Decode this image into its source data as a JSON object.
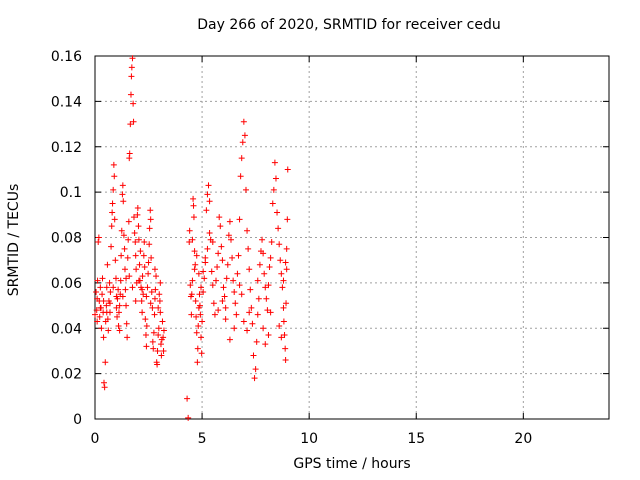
{
  "chart_data": {
    "type": "scatter",
    "title": "Day 266 of 2020, SRMTID for receiver cedu",
    "xlabel": "GPS time / hours",
    "ylabel": "SRMTID / TECUs",
    "xlim": [
      0,
      24
    ],
    "ylim": [
      0,
      0.16
    ],
    "xticks": [
      "0",
      "5",
      "10",
      "15",
      "20"
    ],
    "yticks": [
      "0",
      "0.02",
      "0.04",
      "0.06",
      "0.08",
      "0.1",
      "0.12",
      "0.14",
      "0.16"
    ],
    "grid": true,
    "legend": "none",
    "marker": "+",
    "color": "#ff0000",
    "series": [
      {
        "points": [
          [
            0.0,
            0.046
          ],
          [
            0.05,
            0.056
          ],
          [
            0.08,
            0.048
          ],
          [
            0.1,
            0.043
          ],
          [
            0.12,
            0.061
          ],
          [
            0.15,
            0.078
          ],
          [
            0.18,
            0.08
          ],
          [
            0.2,
            0.052
          ],
          [
            0.22,
            0.045
          ],
          [
            0.25,
            0.058
          ],
          [
            0.28,
            0.049
          ],
          [
            0.3,
            0.04
          ],
          [
            0.33,
            0.055
          ],
          [
            0.35,
            0.062
          ],
          [
            0.38,
            0.047
          ],
          [
            0.4,
            0.036
          ],
          [
            0.42,
            0.016
          ],
          [
            0.45,
            0.014
          ],
          [
            0.48,
            0.025
          ],
          [
            0.5,
            0.043
          ],
          [
            0.53,
            0.05
          ],
          [
            0.55,
            0.058
          ],
          [
            0.58,
            0.068
          ],
          [
            0.6,
            0.044
          ],
          [
            0.62,
            0.039
          ],
          [
            0.65,
            0.052
          ],
          [
            0.68,
            0.06
          ],
          [
            0.7,
            0.047
          ],
          [
            0.72,
            0.056
          ],
          [
            0.75,
            0.076
          ],
          [
            0.78,
            0.085
          ],
          [
            0.8,
            0.091
          ],
          [
            0.82,
            0.095
          ],
          [
            0.85,
            0.101
          ],
          [
            0.88,
            0.112
          ],
          [
            0.9,
            0.107
          ],
          [
            0.92,
            0.088
          ],
          [
            0.95,
            0.07
          ],
          [
            0.98,
            0.062
          ],
          [
            1.0,
            0.049
          ],
          [
            1.03,
            0.045
          ],
          [
            1.05,
            0.053
          ],
          [
            1.08,
            0.057
          ],
          [
            1.1,
            0.041
          ],
          [
            1.12,
            0.047
          ],
          [
            1.15,
            0.039
          ],
          [
            1.18,
            0.055
          ],
          [
            1.2,
            0.061
          ],
          [
            1.22,
            0.072
          ],
          [
            1.25,
            0.083
          ],
          [
            1.28,
            0.099
          ],
          [
            1.3,
            0.103
          ],
          [
            1.32,
            0.096
          ],
          [
            1.35,
            0.081
          ],
          [
            1.38,
            0.075
          ],
          [
            1.4,
            0.066
          ],
          [
            1.42,
            0.057
          ],
          [
            1.45,
            0.05
          ],
          [
            1.48,
            0.042
          ],
          [
            1.5,
            0.036
          ],
          [
            1.53,
            0.071
          ],
          [
            1.55,
            0.079
          ],
          [
            1.58,
            0.087
          ],
          [
            1.6,
            0.115
          ],
          [
            1.62,
            0.117
          ],
          [
            1.65,
            0.13
          ],
          [
            1.68,
            0.143
          ],
          [
            1.7,
            0.151
          ],
          [
            1.72,
            0.155
          ],
          [
            1.75,
            0.159
          ],
          [
            1.78,
            0.139
          ],
          [
            1.8,
            0.131
          ],
          [
            1.82,
            0.089
          ],
          [
            1.85,
            0.082
          ],
          [
            1.88,
            0.078
          ],
          [
            1.9,
            0.072
          ],
          [
            1.92,
            0.066
          ],
          [
            1.95,
            0.06
          ],
          [
            1.98,
            0.09
          ],
          [
            2.0,
            0.093
          ],
          [
            2.03,
            0.085
          ],
          [
            2.05,
            0.079
          ],
          [
            2.08,
            0.068
          ],
          [
            2.1,
            0.061
          ],
          [
            2.12,
            0.074
          ],
          [
            2.15,
            0.058
          ],
          [
            2.18,
            0.052
          ],
          [
            2.2,
            0.047
          ],
          [
            2.22,
            0.063
          ],
          [
            2.25,
            0.055
          ],
          [
            2.28,
            0.072
          ],
          [
            2.3,
            0.078
          ],
          [
            2.32,
            0.067
          ],
          [
            2.35,
            0.044
          ],
          [
            2.38,
            0.037
          ],
          [
            2.4,
            0.032
          ],
          [
            2.42,
            0.041
          ],
          [
            2.45,
            0.058
          ],
          [
            2.48,
            0.064
          ],
          [
            2.5,
            0.069
          ],
          [
            2.53,
            0.077
          ],
          [
            2.55,
            0.084
          ],
          [
            2.58,
            0.092
          ],
          [
            2.6,
            0.088
          ],
          [
            2.62,
            0.071
          ],
          [
            2.65,
            0.056
          ],
          [
            2.68,
            0.049
          ],
          [
            2.7,
            0.034
          ],
          [
            2.72,
            0.031
          ],
          [
            2.75,
            0.038
          ],
          [
            2.78,
            0.046
          ],
          [
            2.8,
            0.053
          ],
          [
            2.82,
            0.057
          ],
          [
            2.85,
            0.063
          ],
          [
            2.88,
            0.025
          ],
          [
            2.9,
            0.024
          ],
          [
            2.92,
            0.03
          ],
          [
            2.95,
            0.037
          ],
          [
            2.98,
            0.04
          ],
          [
            3.0,
            0.055
          ],
          [
            3.03,
            0.052
          ],
          [
            3.05,
            0.047
          ],
          [
            3.08,
            0.033
          ],
          [
            3.1,
            0.028
          ],
          [
            3.12,
            0.035
          ],
          [
            3.15,
            0.043
          ],
          [
            3.18,
            0.036
          ],
          [
            3.2,
            0.03
          ],
          [
            3.22,
            0.039
          ],
          [
            4.3,
            0.009
          ],
          [
            4.35,
            0.0005
          ],
          [
            4.4,
            0.078
          ],
          [
            4.42,
            0.083
          ],
          [
            4.45,
            0.059
          ],
          [
            4.48,
            0.054
          ],
          [
            4.5,
            0.046
          ],
          [
            4.52,
            0.055
          ],
          [
            4.55,
            0.079
          ],
          [
            4.58,
            0.097
          ],
          [
            4.6,
            0.094
          ],
          [
            4.62,
            0.089
          ],
          [
            4.65,
            0.074
          ],
          [
            4.68,
            0.068
          ],
          [
            4.7,
            0.052
          ],
          [
            4.72,
            0.045
          ],
          [
            4.75,
            0.038
          ],
          [
            4.78,
            0.025
          ],
          [
            4.8,
            0.031
          ],
          [
            4.82,
            0.041
          ],
          [
            4.85,
            0.049
          ],
          [
            4.88,
            0.055
          ],
          [
            4.9,
            0.05
          ],
          [
            4.92,
            0.046
          ],
          [
            4.95,
            0.036
          ],
          [
            4.98,
            0.029
          ],
          [
            5.0,
            0.043
          ],
          [
            5.05,
            0.056
          ],
          [
            5.1,
            0.062
          ],
          [
            5.15,
            0.071
          ],
          [
            5.2,
            0.092
          ],
          [
            5.25,
            0.099
          ],
          [
            5.3,
            0.103
          ],
          [
            5.35,
            0.096
          ],
          [
            5.4,
            0.079
          ],
          [
            5.45,
            0.065
          ],
          [
            5.5,
            0.059
          ],
          [
            5.55,
            0.051
          ],
          [
            5.6,
            0.046
          ],
          [
            5.65,
            0.061
          ],
          [
            5.7,
            0.067
          ],
          [
            5.75,
            0.073
          ],
          [
            5.8,
            0.089
          ],
          [
            5.85,
            0.085
          ],
          [
            5.9,
            0.076
          ],
          [
            5.95,
            0.07
          ],
          [
            6.0,
            0.058
          ],
          [
            6.05,
            0.054
          ],
          [
            6.1,
            0.049
          ],
          [
            6.15,
            0.062
          ],
          [
            6.2,
            0.068
          ],
          [
            6.25,
            0.081
          ],
          [
            6.3,
            0.087
          ],
          [
            6.35,
            0.079
          ],
          [
            6.4,
            0.071
          ],
          [
            6.45,
            0.061
          ],
          [
            6.5,
            0.056
          ],
          [
            6.55,
            0.051
          ],
          [
            6.6,
            0.046
          ],
          [
            6.65,
            0.064
          ],
          [
            6.7,
            0.072
          ],
          [
            6.75,
            0.088
          ],
          [
            6.8,
            0.107
          ],
          [
            6.85,
            0.115
          ],
          [
            6.9,
            0.122
          ],
          [
            6.95,
            0.131
          ],
          [
            7.0,
            0.125
          ],
          [
            7.05,
            0.101
          ],
          [
            7.1,
            0.083
          ],
          [
            7.15,
            0.075
          ],
          [
            7.2,
            0.066
          ],
          [
            7.25,
            0.057
          ],
          [
            7.3,
            0.049
          ],
          [
            7.35,
            0.042
          ],
          [
            7.4,
            0.028
          ],
          [
            7.45,
            0.018
          ],
          [
            7.5,
            0.022
          ],
          [
            7.55,
            0.034
          ],
          [
            7.6,
            0.046
          ],
          [
            7.65,
            0.053
          ],
          [
            7.7,
            0.068
          ],
          [
            7.75,
            0.074
          ],
          [
            7.8,
            0.079
          ],
          [
            7.85,
            0.073
          ],
          [
            7.9,
            0.064
          ],
          [
            7.95,
            0.058
          ],
          [
            8.0,
            0.053
          ],
          [
            8.05,
            0.048
          ],
          [
            8.1,
            0.059
          ],
          [
            8.15,
            0.067
          ],
          [
            8.2,
            0.071
          ],
          [
            8.25,
            0.078
          ],
          [
            8.3,
            0.095
          ],
          [
            8.35,
            0.101
          ],
          [
            8.4,
            0.113
          ],
          [
            8.45,
            0.106
          ],
          [
            8.5,
            0.091
          ],
          [
            8.55,
            0.084
          ],
          [
            8.6,
            0.077
          ],
          [
            8.65,
            0.07
          ],
          [
            8.7,
            0.064
          ],
          [
            8.75,
            0.058
          ],
          [
            8.8,
            0.049
          ],
          [
            8.82,
            0.043
          ],
          [
            8.85,
            0.037
          ],
          [
            8.88,
            0.031
          ],
          [
            8.9,
            0.026
          ],
          [
            8.92,
            0.051
          ],
          [
            8.95,
            0.066
          ],
          [
            8.98,
            0.088
          ],
          [
            9.0,
            0.11
          ],
          [
            8.6,
            0.041
          ],
          [
            8.7,
            0.036
          ],
          [
            8.8,
            0.061
          ],
          [
            8.9,
            0.069
          ],
          [
            8.95,
            0.075
          ],
          [
            8.2,
            0.047
          ],
          [
            8.1,
            0.037
          ],
          [
            7.95,
            0.033
          ],
          [
            7.85,
            0.04
          ],
          [
            7.6,
            0.061
          ],
          [
            7.2,
            0.047
          ],
          [
            7.1,
            0.039
          ],
          [
            6.95,
            0.043
          ],
          [
            6.85,
            0.055
          ],
          [
            6.75,
            0.059
          ],
          [
            6.5,
            0.04
          ],
          [
            6.3,
            0.035
          ],
          [
            6.1,
            0.044
          ],
          [
            5.95,
            0.052
          ],
          [
            5.75,
            0.048
          ],
          [
            5.5,
            0.078
          ],
          [
            5.35,
            0.082
          ],
          [
            5.25,
            0.075
          ],
          [
            5.15,
            0.069
          ],
          [
            5.05,
            0.065
          ],
          [
            4.95,
            0.058
          ],
          [
            4.85,
            0.064
          ],
          [
            4.75,
            0.072
          ],
          [
            4.65,
            0.066
          ],
          [
            4.55,
            0.061
          ],
          [
            3.05,
            0.06
          ],
          [
            2.95,
            0.049
          ],
          [
            2.8,
            0.066
          ],
          [
            2.6,
            0.051
          ],
          [
            2.4,
            0.054
          ],
          [
            2.2,
            0.057
          ],
          [
            2.05,
            0.061
          ],
          [
            1.9,
            0.052
          ],
          [
            1.75,
            0.058
          ],
          [
            1.6,
            0.063
          ],
          [
            1.45,
            0.062
          ],
          [
            1.3,
            0.054
          ],
          [
            1.15,
            0.05
          ],
          [
            1.0,
            0.054
          ],
          [
            0.85,
            0.058
          ],
          [
            0.7,
            0.051
          ],
          [
            0.55,
            0.047
          ],
          [
            0.4,
            0.052
          ],
          [
            0.25,
            0.049
          ],
          [
            0.1,
            0.053
          ]
        ]
      }
    ]
  }
}
